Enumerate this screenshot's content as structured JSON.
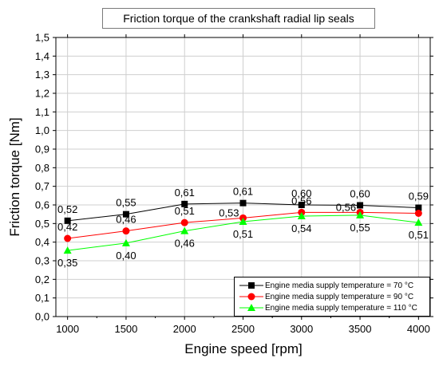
{
  "chart_data": {
    "type": "line",
    "title": "Friction torque of the crankshaft radial lip seals",
    "xlabel": "Engine speed [rpm]",
    "ylabel": "Friction torque [Nm]",
    "x": [
      1000,
      1500,
      2000,
      2500,
      3000,
      3500,
      4000
    ],
    "xlim": [
      900,
      4100
    ],
    "ylim": [
      0.0,
      1.5
    ],
    "x_ticks": [
      "1000",
      "1500",
      "2000",
      "2500",
      "3000",
      "3500",
      "4000"
    ],
    "y_ticks": [
      "0,0",
      "0,1",
      "0,2",
      "0,3",
      "0,4",
      "0,5",
      "0,6",
      "0,7",
      "0,8",
      "0,9",
      "1,0",
      "1,1",
      "1,2",
      "1,3",
      "1,4",
      "1,5"
    ],
    "grid": true,
    "legend_position": "bottom-right",
    "series": [
      {
        "name": "Engine media supply temperature = 70 °C",
        "values": [
          0.515,
          0.55,
          0.605,
          0.61,
          0.6,
          0.598,
          0.585
        ],
        "labels": [
          "0,52",
          "0,55",
          "0,61",
          "0,61",
          "0,60",
          "0,60",
          "0,59"
        ],
        "label_side": [
          "above",
          "above",
          "above",
          "above",
          "above",
          "above",
          "above"
        ],
        "color": "#000000",
        "marker": "square"
      },
      {
        "name": "Engine media supply temperature = 90 °C",
        "values": [
          0.42,
          0.46,
          0.505,
          0.53,
          0.56,
          0.56,
          0.555
        ],
        "labels": [
          "0,42",
          "0,46",
          "0,51",
          "0,53",
          "0,56",
          "0,56",
          ""
        ],
        "label_side": [
          "above",
          "above",
          "above",
          "left",
          "above",
          "left",
          "above"
        ],
        "color": "#ff0000",
        "marker": "circle"
      },
      {
        "name": "Engine media supply temperature = 110 °C",
        "values": [
          0.355,
          0.395,
          0.46,
          0.51,
          0.54,
          0.545,
          0.505
        ],
        "labels": [
          "0,35",
          "0,40",
          "0,46",
          "0,51",
          "0,54",
          "0,55",
          "0,51"
        ],
        "label_side": [
          "below",
          "below",
          "below",
          "below",
          "below",
          "below",
          "below"
        ],
        "color": "#00ff00",
        "marker": "triangle"
      }
    ]
  }
}
